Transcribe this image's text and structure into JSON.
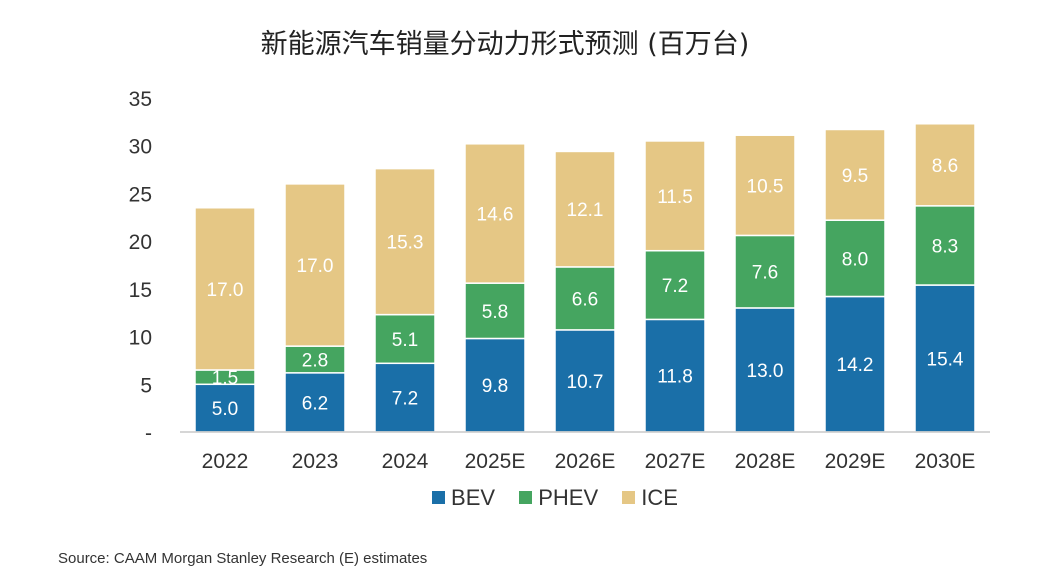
{
  "chart_data": {
    "type": "bar",
    "stacked": true,
    "title": "新能源汽车销量分动力形式预测 (百万台)",
    "categories": [
      "2022",
      "2023",
      "2024",
      "2025E",
      "2026E",
      "2027E",
      "2028E",
      "2029E",
      "2030E"
    ],
    "series": [
      {
        "name": "BEV",
        "color": "#1a6fa8",
        "values": [
          5.0,
          6.2,
          7.2,
          9.8,
          10.7,
          11.8,
          13.0,
          14.2,
          15.4
        ]
      },
      {
        "name": "PHEV",
        "color": "#45a560",
        "values": [
          1.5,
          2.8,
          5.1,
          5.8,
          6.6,
          7.2,
          7.6,
          8.0,
          8.3
        ]
      },
      {
        "name": "ICE",
        "color": "#e5c785",
        "values": [
          17.0,
          17.0,
          15.3,
          14.6,
          12.1,
          11.5,
          10.5,
          9.5,
          8.6
        ]
      }
    ],
    "yticks": [
      "-",
      "5",
      "10",
      "15",
      "20",
      "25",
      "30",
      "35"
    ],
    "ylim": [
      0,
      35
    ],
    "grid": false,
    "legend_position": "bottom"
  },
  "source": "Source: CAAM Morgan Stanley Research (E) estimates"
}
